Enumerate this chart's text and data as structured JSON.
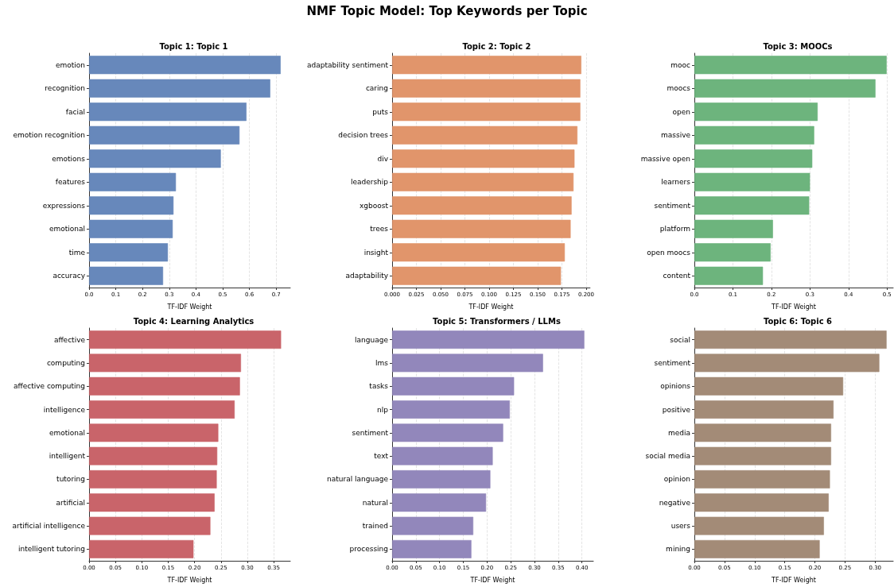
{
  "chart_data": [
    {
      "type": "bar",
      "orientation": "horizontal",
      "subtitle": "Topic 1: Topic 1",
      "xlabel": "TF-IDF Weight",
      "grid": "x",
      "categories": [
        "emotion",
        "recognition",
        "facial",
        "emotion recognition",
        "emotions",
        "features",
        "expressions",
        "emotional",
        "time",
        "accuracy"
      ],
      "series": [
        {
          "color": "#6788bb",
          "values": [
            0.717,
            0.678,
            0.589,
            0.563,
            0.493,
            0.325,
            0.316,
            0.313,
            0.295,
            0.277
          ]
        }
      ],
      "xlim": [
        0,
        0.753
      ],
      "xticks": [
        {
          "value": 0,
          "label": "0.0"
        },
        0.1,
        0.2,
        0.3,
        0.4,
        0.5,
        0.6,
        0.7
      ]
    },
    {
      "type": "bar",
      "orientation": "horizontal",
      "title": "NMF Topic Model: Top Keywords per Topic",
      "subtitle": "Topic 2: Topic 2",
      "xlabel": "TF-IDF Weight",
      "grid": "x",
      "categories": [
        "adaptability sentiment",
        "caring",
        "puts",
        "decision trees",
        "div",
        "leadership",
        "xgboost",
        "trees",
        "insight",
        "adaptability"
      ],
      "series": [
        {
          "color": "#e1956b",
          "values": [
            0.195,
            0.194,
            0.194,
            0.191,
            0.188,
            0.187,
            0.185,
            0.184,
            0.178,
            0.174
          ]
        }
      ],
      "xlim": [
        0,
        0.204
      ],
      "xticks": [
        {
          "value": 0,
          "label": "0.000"
        },
        0.025,
        {
          "value": 0.05,
          "label": "0.050"
        },
        0.075,
        {
          "value": 0.1,
          "label": "0.100"
        },
        0.125,
        {
          "value": 0.15,
          "label": "0.150"
        },
        0.175,
        {
          "value": 0.2,
          "label": "0.200"
        }
      ]
    },
    {
      "type": "bar",
      "orientation": "horizontal",
      "subtitle": "Topic 3: MOOCs",
      "xlabel": "TF-IDF Weight",
      "grid": "x",
      "categories": [
        "mooc",
        "moocs",
        "open",
        "massive",
        "massive open",
        "learners",
        "sentiment",
        "platform",
        "open moocs",
        "content"
      ],
      "series": [
        {
          "color": "#6db47d",
          "values": [
            0.499,
            0.47,
            0.32,
            0.311,
            0.306,
            0.3,
            0.298,
            0.204,
            0.198,
            0.178
          ]
        }
      ],
      "xlim": [
        0,
        0.516
      ],
      "xticks": [
        {
          "value": 0,
          "label": "0.0"
        },
        0.1,
        0.2,
        0.3,
        0.4,
        0.5
      ]
    },
    {
      "type": "bar",
      "orientation": "horizontal",
      "subtitle": "Topic 4: Learning Analytics",
      "xlabel": "TF-IDF Weight",
      "grid": "x",
      "categories": [
        "affective",
        "computing",
        "affective computing",
        "intelligence",
        "emotional",
        "intelligent",
        "tutoring",
        "artificial",
        "artificial intelligence",
        "intelligent tutoring"
      ],
      "series": [
        {
          "color": "#c9646a",
          "values": [
            0.364,
            0.288,
            0.286,
            0.276,
            0.245,
            0.243,
            0.242,
            0.238,
            0.23,
            0.198
          ]
        }
      ],
      "xlim": [
        0,
        0.3815
      ],
      "xticks": [
        {
          "value": 0,
          "label": "0.00"
        },
        0.05,
        {
          "value": 0.1,
          "label": "0.10"
        },
        0.15,
        {
          "value": 0.2,
          "label": "0.20"
        },
        0.25,
        {
          "value": 0.3,
          "label": "0.30"
        },
        0.35
      ]
    },
    {
      "type": "bar",
      "orientation": "horizontal",
      "subtitle": "Topic 5: Transformers / LLMs",
      "xlabel": "TF-IDF Weight",
      "grid": "x",
      "categories": [
        "language",
        "lms",
        "tasks",
        "nlp",
        "sentiment",
        "text",
        "natural language",
        "natural",
        "trained",
        "processing"
      ],
      "series": [
        {
          "color": "#9287bb",
          "values": [
            0.405,
            0.318,
            0.257,
            0.248,
            0.234,
            0.212,
            0.207,
            0.198,
            0.171,
            0.167
          ]
        }
      ],
      "xlim": [
        0,
        0.424
      ],
      "xticks": [
        {
          "value": 0,
          "label": "0.00"
        },
        0.05,
        {
          "value": 0.1,
          "label": "0.10"
        },
        0.15,
        {
          "value": 0.2,
          "label": "0.20"
        },
        0.25,
        {
          "value": 0.3,
          "label": "0.30"
        },
        0.35,
        {
          "value": 0.4,
          "label": "0.40"
        }
      ]
    },
    {
      "type": "bar",
      "orientation": "horizontal",
      "subtitle": "Topic 6: Topic 6",
      "xlabel": "TF-IDF Weight",
      "grid": "x",
      "categories": [
        "social",
        "sentiment",
        "opinions",
        "positive",
        "media",
        "social media",
        "opinion",
        "negative",
        "users",
        "mining"
      ],
      "series": [
        {
          "color": "#a38b77",
          "values": [
            0.319,
            0.307,
            0.247,
            0.231,
            0.227,
            0.227,
            0.225,
            0.223,
            0.215,
            0.208
          ]
        }
      ],
      "xlim": [
        0,
        0.33
      ],
      "xticks": [
        {
          "value": 0,
          "label": "0.00"
        },
        0.05,
        {
          "value": 0.1,
          "label": "0.10"
        },
        0.15,
        {
          "value": 0.2,
          "label": "0.20"
        },
        0.25,
        {
          "value": 0.3,
          "label": "0.30"
        }
      ]
    }
  ]
}
